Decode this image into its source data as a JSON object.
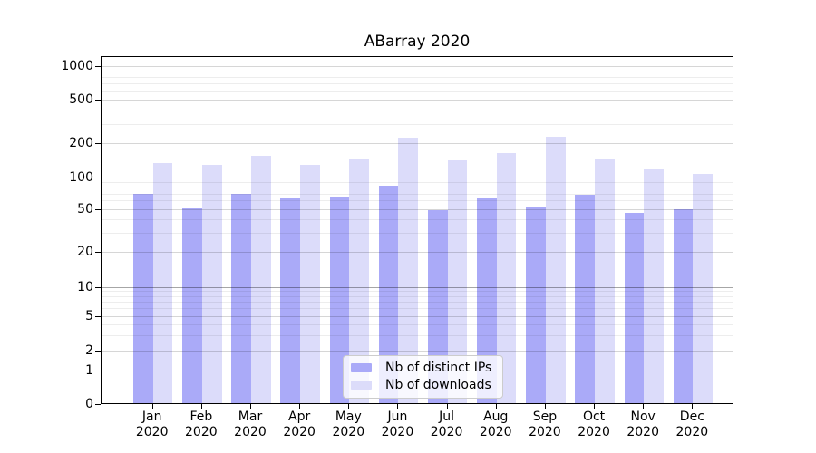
{
  "chart_data": {
    "type": "bar",
    "title": "ABarray 2020",
    "categories": [
      "Jan",
      "Feb",
      "Mar",
      "Apr",
      "May",
      "Jun",
      "Jul",
      "Aug",
      "Sep",
      "Oct",
      "Nov",
      "Dec"
    ],
    "year_label": "2020",
    "series": [
      {
        "name": "Nb of distinct IPs",
        "color": "#aaaaf8",
        "values": [
          68,
          50,
          68,
          63,
          64,
          82,
          48,
          63,
          52,
          67,
          45,
          49
        ]
      },
      {
        "name": "Nb of downloads",
        "color": "#dcdcfa",
        "values": [
          132,
          126,
          153,
          127,
          140,
          222,
          138,
          161,
          225,
          144,
          118,
          105
        ]
      }
    ],
    "y_ticks": [
      0,
      1,
      2,
      5,
      10,
      20,
      50,
      100,
      200,
      500,
      1000
    ],
    "y_scale": "log-like with 0 baseline",
    "ylim": [
      0,
      1200
    ],
    "grid": true,
    "legend_position": "lower center"
  }
}
